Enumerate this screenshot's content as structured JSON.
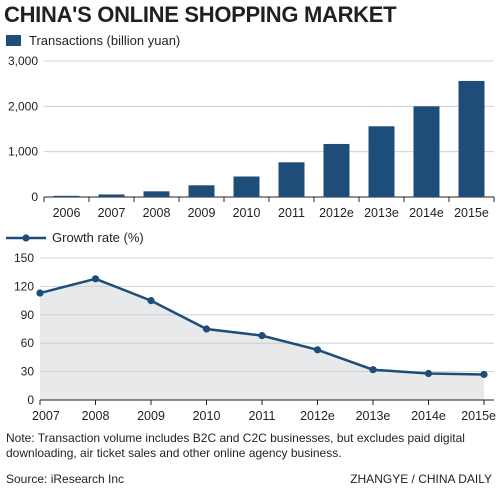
{
  "title": "CHINA'S ONLINE SHOPPING MARKET",
  "note": "Note: Transaction volume includes B2C and C2C businesses, but excludes paid digital downloading, air ticket sales and other online agency business.",
  "source": "Source: iResearch Inc",
  "credit": "ZHANGYE / CHINA DAILY",
  "colors": {
    "bar": "#1f4d7a",
    "line": "#1f4d7a",
    "area": "#e8e9ea",
    "grid": "#c9c9c9"
  },
  "chart_data": [
    {
      "type": "bar",
      "legend": "Transactions (billion yuan)",
      "categories": [
        "2006",
        "2007",
        "2008",
        "2009",
        "2010",
        "2011",
        "2012e",
        "2013e",
        "2014e",
        "2015e"
      ],
      "values": [
        26,
        56,
        125,
        258,
        452,
        765,
        1170,
        1560,
        2000,
        2560
      ],
      "ylim": [
        0,
        3000
      ],
      "yticks": [
        0,
        1000,
        2000,
        3000
      ],
      "ytick_labels": [
        "0",
        "1,000",
        "2,000",
        "3,000"
      ],
      "grid": true
    },
    {
      "type": "area",
      "legend": "Growth rate (%)",
      "categories": [
        "2007",
        "2008",
        "2009",
        "2010",
        "2011",
        "2012e",
        "2013e",
        "2014e",
        "2015e"
      ],
      "values": [
        113,
        128,
        105,
        75,
        68,
        53,
        32,
        28,
        27
      ],
      "ylim": [
        0,
        150
      ],
      "yticks": [
        0,
        30,
        60,
        90,
        120,
        150
      ],
      "ytick_labels": [
        "0",
        "30",
        "60",
        "90",
        "120",
        "150"
      ],
      "grid": true
    }
  ]
}
